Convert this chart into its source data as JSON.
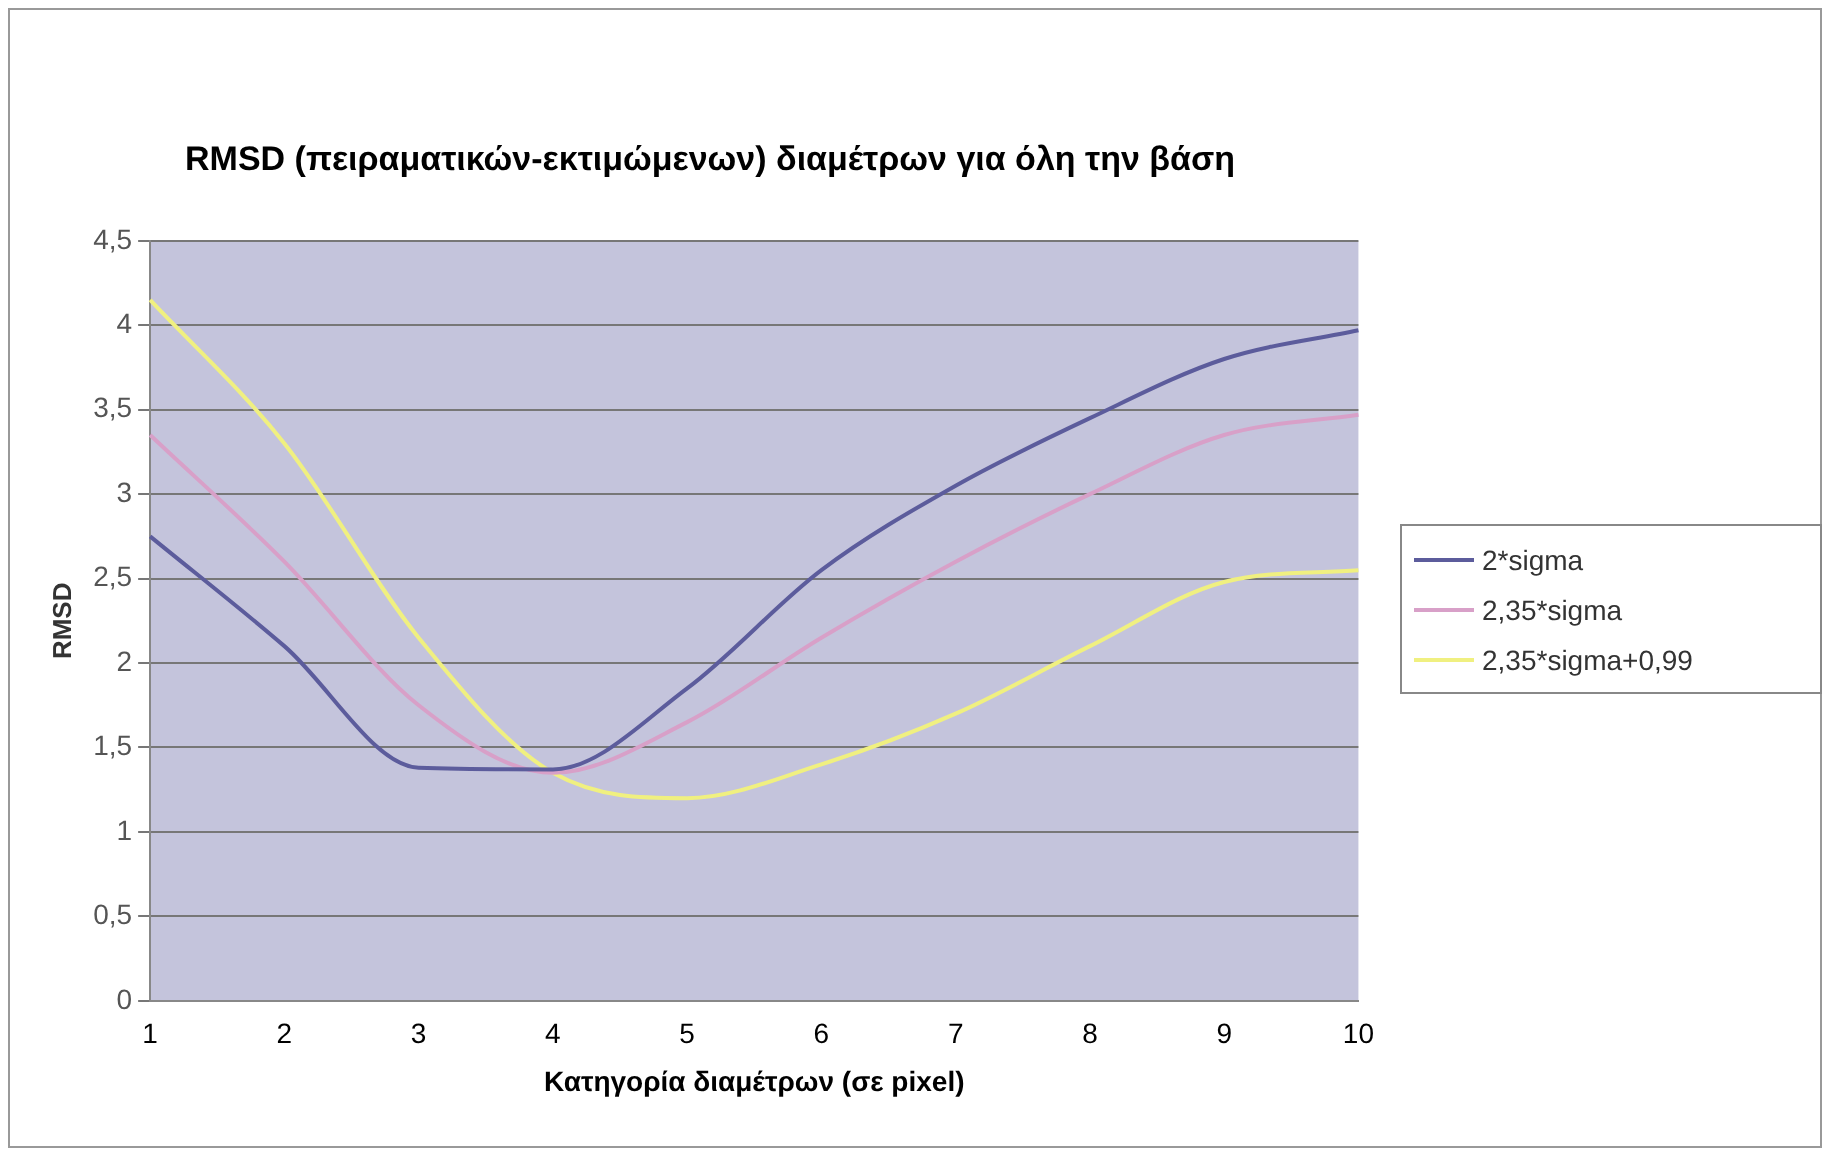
{
  "chart_data": {
    "type": "line",
    "title": "RMSD (πειραματικών-εκτιμώμενων) διαμέτρων για όλη την βάση",
    "xlabel": "Κατηγορία διαμέτρων (σε pixel)",
    "ylabel": "RMSD",
    "categories": [
      "1",
      "2",
      "3",
      "4",
      "5",
      "6",
      "7",
      "8",
      "9",
      "10"
    ],
    "series": [
      {
        "name": "2*sigma",
        "color": "#5c5c9c",
        "values": [
          2.75,
          2.1,
          1.38,
          1.37,
          1.85,
          2.55,
          3.05,
          3.45,
          3.8,
          3.97
        ]
      },
      {
        "name": "2,35*sigma",
        "color": "#d8a0c8",
        "values": [
          3.35,
          2.6,
          1.75,
          1.35,
          1.65,
          2.15,
          2.6,
          3.0,
          3.35,
          3.47
        ]
      },
      {
        "name": "2,35*sigma+0,99",
        "color": "#f0f080",
        "values": [
          4.15,
          3.3,
          2.15,
          1.35,
          1.2,
          1.4,
          1.7,
          2.1,
          2.48,
          2.55
        ]
      }
    ],
    "ylim": [
      0,
      4.5
    ],
    "yticks": [
      {
        "value": 0,
        "label": "0"
      },
      {
        "value": 0.5,
        "label": "0,5"
      },
      {
        "value": 1,
        "label": "1"
      },
      {
        "value": 1.5,
        "label": "1,5"
      },
      {
        "value": 2,
        "label": "2"
      },
      {
        "value": 2.5,
        "label": "2,5"
      },
      {
        "value": 3,
        "label": "3"
      },
      {
        "value": 3.5,
        "label": "3,5"
      },
      {
        "value": 4,
        "label": "4"
      },
      {
        "value": 4.5,
        "label": "4,5"
      }
    ],
    "grid": "y",
    "legend": "right",
    "marker": "none",
    "line_style": "solid"
  }
}
